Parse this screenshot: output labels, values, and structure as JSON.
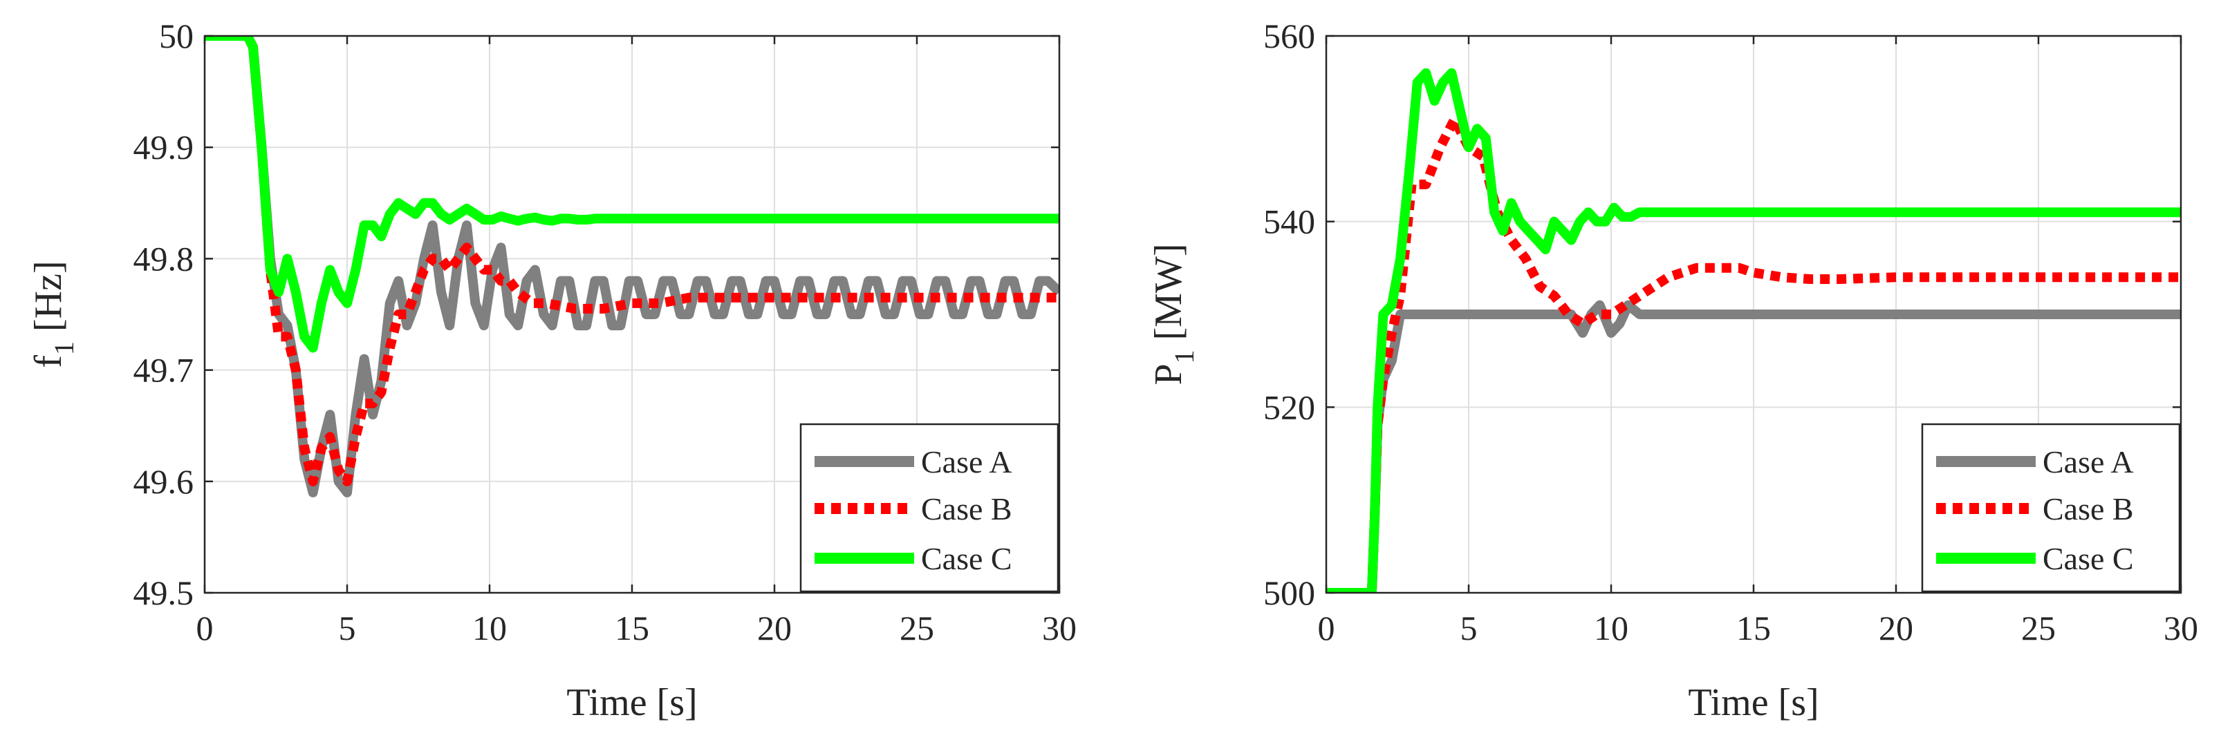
{
  "chart_data": [
    {
      "type": "line",
      "title": "",
      "xlabel": "Time [s]",
      "ylabel": "f",
      "ylabel_sub": "1",
      "ylabel_unit": " [Hz]",
      "xlim": [
        0,
        30
      ],
      "ylim": [
        49.5,
        50
      ],
      "xticks": [
        "0",
        "5",
        "10",
        "15",
        "20",
        "25",
        "30"
      ],
      "yticks": [
        "49.5",
        "49.6",
        "49.7",
        "49.8",
        "49.9",
        "50"
      ],
      "xtick_values": [
        0,
        5,
        10,
        15,
        20,
        25,
        30
      ],
      "ytick_values": [
        49.5,
        49.6,
        49.7,
        49.8,
        49.9,
        50
      ],
      "grid": true,
      "legend_position": "bottom-right",
      "series": [
        {
          "name": "Case A",
          "color": "#808080",
          "style": "solid",
          "x": [
            0,
            1.5,
            1.7,
            2.0,
            2.3,
            2.6,
            2.9,
            3.2,
            3.5,
            3.8,
            4.1,
            4.4,
            4.7,
            5.0,
            5.3,
            5.6,
            5.9,
            6.2,
            6.5,
            6.8,
            7.1,
            7.4,
            7.7,
            8.0,
            8.3,
            8.6,
            8.9,
            9.2,
            9.5,
            9.8,
            10.1,
            10.4,
            10.7,
            11.0,
            11.3,
            11.6,
            11.9,
            12.2,
            12.5,
            12.8,
            13.1,
            13.4,
            13.7,
            14.0,
            14.3,
            14.6,
            14.9,
            15.2,
            15.5,
            15.8,
            16.1,
            16.4,
            16.7,
            17.0,
            17.3,
            17.6,
            17.9,
            18.2,
            18.5,
            18.8,
            19.1,
            19.4,
            19.7,
            20.0,
            20.3,
            20.6,
            20.9,
            21.2,
            21.5,
            21.8,
            22.1,
            22.4,
            22.7,
            23.0,
            23.3,
            23.6,
            23.9,
            24.2,
            24.5,
            24.8,
            25.1,
            25.4,
            25.7,
            26.0,
            26.3,
            26.6,
            26.9,
            27.2,
            27.5,
            27.8,
            28.1,
            28.4,
            28.7,
            29.0,
            29.3,
            29.6,
            30.0
          ],
          "y": [
            50.0,
            50.0,
            49.99,
            49.9,
            49.8,
            49.75,
            49.74,
            49.7,
            49.62,
            49.59,
            49.63,
            49.66,
            49.6,
            49.59,
            49.66,
            49.71,
            49.66,
            49.69,
            49.76,
            49.78,
            49.74,
            49.76,
            49.8,
            49.83,
            49.77,
            49.74,
            49.8,
            49.83,
            49.76,
            49.74,
            49.79,
            49.81,
            49.75,
            49.74,
            49.78,
            49.79,
            49.75,
            49.74,
            49.78,
            49.78,
            49.74,
            49.74,
            49.78,
            49.78,
            49.74,
            49.74,
            49.78,
            49.78,
            49.75,
            49.75,
            49.78,
            49.78,
            49.75,
            49.75,
            49.78,
            49.78,
            49.75,
            49.75,
            49.78,
            49.78,
            49.75,
            49.75,
            49.78,
            49.78,
            49.75,
            49.75,
            49.78,
            49.78,
            49.75,
            49.75,
            49.78,
            49.78,
            49.75,
            49.75,
            49.78,
            49.78,
            49.75,
            49.75,
            49.78,
            49.78,
            49.75,
            49.75,
            49.78,
            49.78,
            49.75,
            49.75,
            49.78,
            49.78,
            49.75,
            49.75,
            49.78,
            49.78,
            49.75,
            49.75,
            49.78,
            49.78,
            49.77
          ]
        },
        {
          "name": "Case B",
          "color": "#ff0000",
          "style": "dotted",
          "x": [
            0,
            1.5,
            1.7,
            2.0,
            2.3,
            2.6,
            2.9,
            3.2,
            3.5,
            3.8,
            4.1,
            4.4,
            4.7,
            5.0,
            5.3,
            5.6,
            5.9,
            6.2,
            6.5,
            6.8,
            7.1,
            7.4,
            7.7,
            8.0,
            8.3,
            8.6,
            8.9,
            9.2,
            9.5,
            9.8,
            10.1,
            10.4,
            10.7,
            11.0,
            11.5,
            12.0,
            13.0,
            14.0,
            15.0,
            16.0,
            17.0,
            18.0,
            20.0,
            22.0,
            24.0,
            26.0,
            28.0,
            30.0
          ],
          "y": [
            50.0,
            50.0,
            49.99,
            49.9,
            49.79,
            49.73,
            49.73,
            49.7,
            49.63,
            49.6,
            49.63,
            49.64,
            49.61,
            49.6,
            49.64,
            49.67,
            49.67,
            49.68,
            49.72,
            49.75,
            49.75,
            49.77,
            49.79,
            49.8,
            49.8,
            49.79,
            49.8,
            49.81,
            49.8,
            49.79,
            49.79,
            49.78,
            49.78,
            49.77,
            49.76,
            49.76,
            49.755,
            49.755,
            49.76,
            49.76,
            49.765,
            49.765,
            49.765,
            49.765,
            49.765,
            49.765,
            49.765,
            49.765
          ]
        },
        {
          "name": "Case C",
          "color": "#00ff00",
          "style": "solid",
          "x": [
            0,
            1.5,
            1.7,
            2.0,
            2.3,
            2.6,
            2.9,
            3.2,
            3.5,
            3.8,
            4.1,
            4.4,
            4.7,
            5.0,
            5.3,
            5.6,
            5.9,
            6.2,
            6.5,
            6.8,
            7.1,
            7.4,
            7.7,
            8.0,
            8.3,
            8.6,
            8.9,
            9.2,
            9.5,
            9.8,
            10.1,
            10.4,
            10.7,
            11.0,
            11.3,
            11.6,
            11.9,
            12.2,
            12.5,
            12.8,
            13.1,
            13.4,
            13.7,
            14.0,
            15.0,
            16.0,
            18.0,
            20.0,
            25.0,
            30.0
          ],
          "y": [
            50.0,
            50.0,
            49.99,
            49.9,
            49.79,
            49.77,
            49.8,
            49.77,
            49.73,
            49.72,
            49.76,
            49.79,
            49.77,
            49.76,
            49.79,
            49.83,
            49.83,
            49.82,
            49.84,
            49.85,
            49.845,
            49.84,
            49.85,
            49.85,
            49.84,
            49.835,
            49.84,
            49.845,
            49.84,
            49.835,
            49.835,
            49.838,
            49.836,
            49.834,
            49.836,
            49.837,
            49.835,
            49.834,
            49.836,
            49.836,
            49.835,
            49.835,
            49.836,
            49.836,
            49.836,
            49.836,
            49.836,
            49.836,
            49.836,
            49.836
          ]
        }
      ]
    },
    {
      "type": "line",
      "title": "",
      "xlabel": "Time [s]",
      "ylabel": "P",
      "ylabel_sub": "1",
      "ylabel_unit": " [MW]",
      "xlim": [
        0,
        30
      ],
      "ylim": [
        500,
        560
      ],
      "xticks": [
        "0",
        "5",
        "10",
        "15",
        "20",
        "25",
        "30"
      ],
      "yticks": [
        "500",
        "520",
        "540",
        "560"
      ],
      "xtick_values": [
        0,
        5,
        10,
        15,
        20,
        25,
        30
      ],
      "ytick_values": [
        500,
        520,
        540,
        560
      ],
      "grid": true,
      "legend_position": "bottom-right",
      "series": [
        {
          "name": "Case A",
          "color": "#808080",
          "style": "solid",
          "x": [
            0,
            1.6,
            1.7,
            1.8,
            2.0,
            2.3,
            2.6,
            3.0,
            4.0,
            5.0,
            6.0,
            7.0,
            8.0,
            8.6,
            9.0,
            9.3,
            9.6,
            10.0,
            10.3,
            10.6,
            11.0,
            12.0,
            15.0,
            20.0,
            25.0,
            30.0
          ],
          "y": [
            500,
            500,
            508,
            518,
            523,
            525,
            530,
            530,
            530,
            530,
            530,
            530,
            530,
            530,
            528,
            530,
            531,
            528,
            529,
            531,
            530,
            530,
            530,
            530,
            530,
            530
          ]
        },
        {
          "name": "Case B",
          "color": "#ff0000",
          "style": "dotted",
          "x": [
            0,
            1.6,
            1.7,
            1.8,
            2.0,
            2.3,
            2.6,
            3.0,
            3.5,
            4.0,
            4.5,
            5.0,
            5.5,
            6.0,
            6.5,
            7.0,
            7.5,
            8.0,
            8.5,
            9.0,
            9.5,
            10.0,
            10.5,
            11.0,
            12.0,
            13.0,
            14.0,
            14.5,
            15.0,
            16.0,
            17.0,
            18.0,
            20.0,
            22.0,
            25.0,
            30.0
          ],
          "y": [
            500,
            500,
            508,
            518,
            523,
            528,
            532,
            544,
            544,
            548,
            551,
            548,
            547,
            541,
            538,
            536,
            533,
            532,
            530,
            529,
            530,
            530,
            531,
            532,
            534,
            535,
            535,
            535,
            534.5,
            534,
            533.8,
            533.8,
            534,
            534,
            534,
            534
          ]
        },
        {
          "name": "Case C",
          "color": "#00ff00",
          "style": "solid",
          "x": [
            0,
            1.6,
            1.7,
            1.8,
            2.0,
            2.3,
            2.6,
            2.9,
            3.2,
            3.5,
            3.8,
            4.1,
            4.4,
            4.7,
            5.0,
            5.3,
            5.6,
            5.9,
            6.2,
            6.5,
            6.8,
            7.1,
            7.4,
            7.7,
            8.0,
            8.3,
            8.6,
            8.9,
            9.2,
            9.5,
            9.8,
            10.1,
            10.4,
            10.7,
            11.0,
            11.5,
            12.0,
            12.5,
            13.0,
            13.5,
            14.0,
            15.0,
            16.0,
            18.0,
            20.0,
            25.0,
            30.0
          ],
          "y": [
            500,
            500,
            508,
            520,
            530,
            531,
            536,
            545,
            555,
            556,
            553,
            555,
            556,
            552,
            548,
            550,
            549,
            541,
            539,
            542,
            540,
            539,
            538,
            537,
            540,
            539,
            538,
            540,
            541,
            540,
            540,
            541.5,
            540.5,
            540.5,
            541,
            541,
            541,
            541,
            541,
            541,
            541,
            541,
            541,
            541,
            541,
            541,
            541
          ]
        }
      ]
    }
  ]
}
